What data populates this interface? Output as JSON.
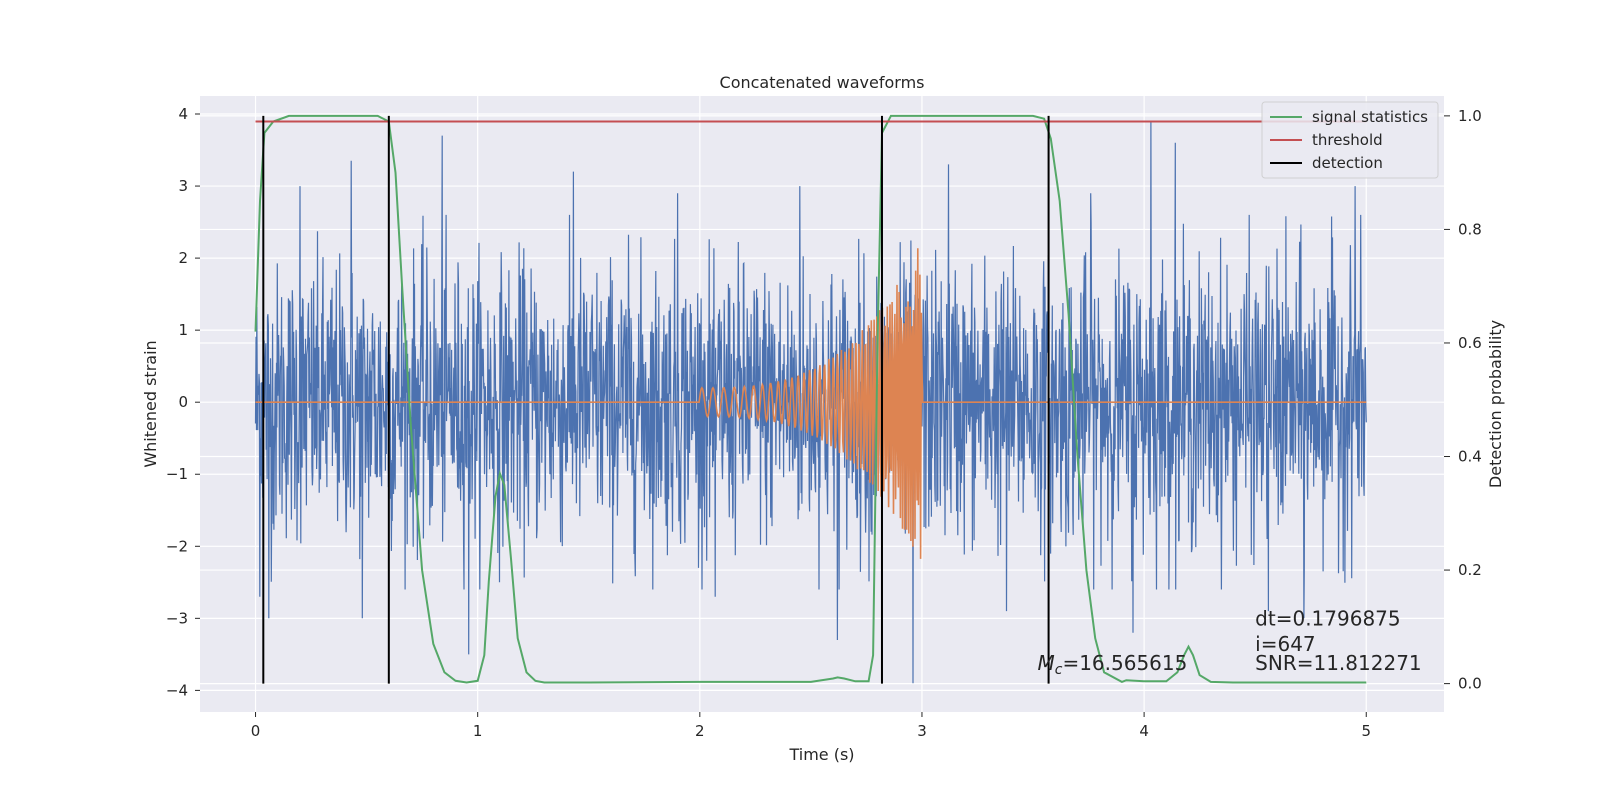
{
  "chart_data": {
    "type": "line",
    "title": "Concatenated waveforms",
    "xlabel": "Time (s)",
    "ylabel": "Whitened strain",
    "y2label": "Detection probability",
    "xlim": [
      -0.25,
      5.35
    ],
    "ylim": [
      -4.3,
      4.25
    ],
    "y2lim": [
      -0.05,
      1.035
    ],
    "xticks": [
      0,
      1,
      2,
      3,
      4,
      5
    ],
    "xtick_labels": [
      "0",
      "1",
      "2",
      "3",
      "4",
      "5"
    ],
    "yticks": [
      -4,
      -3,
      -2,
      -1,
      0,
      1,
      2,
      3,
      4
    ],
    "ytick_labels": [
      "−4",
      "−3",
      "−2",
      "−1",
      "0",
      "1",
      "2",
      "3",
      "4"
    ],
    "y2ticks": [
      0.0,
      0.2,
      0.4,
      0.6,
      0.8,
      1.0
    ],
    "y2tick_labels": [
      "0.0",
      "0.2",
      "0.4",
      "0.6",
      "0.8",
      "1.0"
    ],
    "grid": true,
    "legend_position": "top-right",
    "colors": {
      "noise": "#4c72b0",
      "chirp": "#dd8452",
      "signal_statistics": "#55a868",
      "threshold": "#c44e52",
      "detection": "#000000",
      "background": "#eaeaf2"
    },
    "legend": [
      {
        "label": "signal statistics",
        "color": "#55a868"
      },
      {
        "label": "threshold",
        "color": "#c44e52"
      },
      {
        "label": "detection",
        "color": "#000000"
      }
    ],
    "series": [
      {
        "name": "signal statistics",
        "axis": "right",
        "x": [
          0.0,
          0.02,
          0.04,
          0.08,
          0.15,
          0.3,
          0.55,
          0.6,
          0.63,
          0.66,
          0.7,
          0.75,
          0.8,
          0.85,
          0.9,
          0.95,
          1.0,
          1.03,
          1.05,
          1.08,
          1.1,
          1.12,
          1.15,
          1.18,
          1.22,
          1.26,
          1.3,
          1.5,
          2.0,
          2.5,
          2.6,
          2.62,
          2.65,
          2.7,
          2.76,
          2.78,
          2.8,
          2.82,
          2.86,
          2.92,
          3.2,
          3.5,
          3.55,
          3.58,
          3.62,
          3.66,
          3.7,
          3.74,
          3.78,
          3.82,
          3.9,
          3.92,
          4.0,
          4.1,
          4.15,
          4.18,
          4.2,
          4.22,
          4.25,
          4.3,
          4.4,
          5.0
        ],
        "values": [
          0.62,
          0.85,
          0.97,
          0.99,
          1.0,
          1.0,
          1.0,
          0.99,
          0.9,
          0.7,
          0.45,
          0.2,
          0.07,
          0.02,
          0.005,
          0.002,
          0.005,
          0.05,
          0.18,
          0.33,
          0.37,
          0.35,
          0.22,
          0.08,
          0.02,
          0.005,
          0.002,
          0.002,
          0.003,
          0.003,
          0.009,
          0.011,
          0.009,
          0.004,
          0.004,
          0.05,
          0.6,
          0.97,
          1.0,
          1.0,
          1.0,
          1.0,
          0.995,
          0.96,
          0.85,
          0.65,
          0.4,
          0.2,
          0.08,
          0.02,
          0.003,
          0.006,
          0.004,
          0.004,
          0.02,
          0.05,
          0.065,
          0.05,
          0.015,
          0.003,
          0.002,
          0.002
        ]
      },
      {
        "name": "threshold",
        "axis": "right",
        "x": [
          0.0,
          5.0
        ],
        "values": [
          0.99,
          0.99
        ]
      }
    ],
    "strain_noise": {
      "axis": "left",
      "x_range": [
        0,
        5
      ],
      "spike_times": [
        0.02,
        0.06,
        0.2,
        0.43,
        0.48,
        0.84,
        0.96,
        1.43,
        1.9,
        2.07,
        2.45,
        2.62,
        2.96,
        3.12,
        3.38,
        3.76,
        3.95,
        4.03,
        4.14,
        4.56,
        4.72,
        4.95
      ],
      "spike_values": [
        -2.7,
        -3.0,
        3.0,
        3.35,
        -3.0,
        3.7,
        -3.5,
        3.2,
        2.9,
        -2.7,
        3.0,
        -3.3,
        -3.9,
        3.3,
        -2.9,
        2.9,
        -3.2,
        3.9,
        3.6,
        -2.9,
        -3.0,
        3.0
      ]
    },
    "chirp": {
      "axis": "left",
      "start": 2.0,
      "end": 3.0,
      "amplitude_start": 0.2,
      "amplitude_end": 2.25,
      "frequency_start": 20,
      "frequency_end": 120
    },
    "detections": [
      0.035,
      0.6,
      2.82,
      3.57
    ],
    "annotations": [
      {
        "label": "M_c=16.565615",
        "x": 3.52,
        "y": -3.72
      },
      {
        "label": "dt=0.1796875",
        "x": 4.5,
        "y": -3.1
      },
      {
        "label": " i=647",
        "x": 4.5,
        "y": -3.45
      },
      {
        "label": "SNR=11.812271",
        "x": 4.5,
        "y": -3.72
      }
    ]
  }
}
